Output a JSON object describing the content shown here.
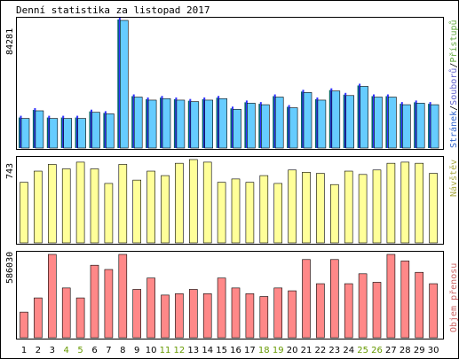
{
  "title": "Denní statistika za listopad 2017",
  "colors": {
    "background": "#ffffff",
    "frame": "#000000",
    "hits": "#66ccff",
    "files": "#3333ff",
    "pages": "#006666",
    "visits": "#ffff99",
    "volume": "#ff8888",
    "weekend_label": "#669900",
    "weekday_label": "#000000",
    "axis_text": "#000000",
    "label_pages": "#3366cc",
    "label_files": "#6666cc",
    "label_hits": "#66aa44",
    "label_visits": "#aaaa44",
    "label_volume": "#cc6666"
  },
  "chart_data": [
    {
      "type": "bar",
      "panel": "hits",
      "max_label": "84281",
      "right_labels": [
        "Stránek",
        "/",
        "Souborů",
        "/",
        "Přístupů"
      ],
      "categories": [
        "1",
        "2",
        "3",
        "4",
        "5",
        "6",
        "7",
        "8",
        "9",
        "10",
        "11",
        "12",
        "13",
        "14",
        "15",
        "16",
        "17",
        "18",
        "19",
        "20",
        "21",
        "22",
        "23",
        "24",
        "25",
        "26",
        "27",
        "28",
        "29",
        "30"
      ],
      "weekend_days": [
        4,
        5,
        11,
        12,
        18,
        19,
        25,
        26
      ],
      "ylim": [
        0,
        84281
      ],
      "series": [
        {
          "name": "Přístupů",
          "values": [
            20000,
            25000,
            20000,
            20000,
            20000,
            24000,
            23000,
            84281,
            34000,
            32000,
            33000,
            32000,
            31000,
            32000,
            33000,
            26000,
            30000,
            29000,
            34000,
            27000,
            37000,
            32000,
            38000,
            35000,
            41000,
            34000,
            34000,
            29000,
            30000,
            29000
          ]
        }
      ]
    },
    {
      "type": "bar",
      "panel": "visits",
      "max_label": "743",
      "right_labels": [
        "Návštěv"
      ],
      "categories": [
        "1",
        "2",
        "3",
        "4",
        "5",
        "6",
        "7",
        "8",
        "9",
        "10",
        "11",
        "12",
        "13",
        "14",
        "15",
        "16",
        "17",
        "18",
        "19",
        "20",
        "21",
        "22",
        "23",
        "24",
        "25",
        "26",
        "27",
        "28",
        "29",
        "30"
      ],
      "ylim": [
        0,
        743
      ],
      "series": [
        {
          "name": "Návštěv",
          "values": [
            540,
            640,
            700,
            660,
            720,
            660,
            530,
            700,
            560,
            640,
            600,
            710,
            743,
            720,
            540,
            570,
            540,
            600,
            530,
            650,
            630,
            620,
            520,
            640,
            610,
            650,
            710,
            720,
            710,
            620
          ]
        }
      ]
    },
    {
      "type": "bar",
      "panel": "volume",
      "max_label": "586030",
      "right_labels": [
        "Objem přenosu"
      ],
      "categories": [
        "1",
        "2",
        "3",
        "4",
        "5",
        "6",
        "7",
        "8",
        "9",
        "10",
        "11",
        "12",
        "13",
        "14",
        "15",
        "16",
        "17",
        "18",
        "19",
        "20",
        "21",
        "22",
        "23",
        "24",
        "25",
        "26",
        "27",
        "28",
        "29",
        "30"
      ],
      "ylim": [
        0,
        586030
      ],
      "series": [
        {
          "name": "Objem přenosu",
          "values": [
            180000,
            280000,
            586030,
            350000,
            280000,
            510000,
            480000,
            586030,
            340000,
            420000,
            300000,
            310000,
            340000,
            310000,
            420000,
            350000,
            310000,
            290000,
            350000,
            330000,
            550000,
            380000,
            550000,
            380000,
            450000,
            390000,
            586030,
            540000,
            460000,
            380000
          ]
        }
      ]
    }
  ]
}
